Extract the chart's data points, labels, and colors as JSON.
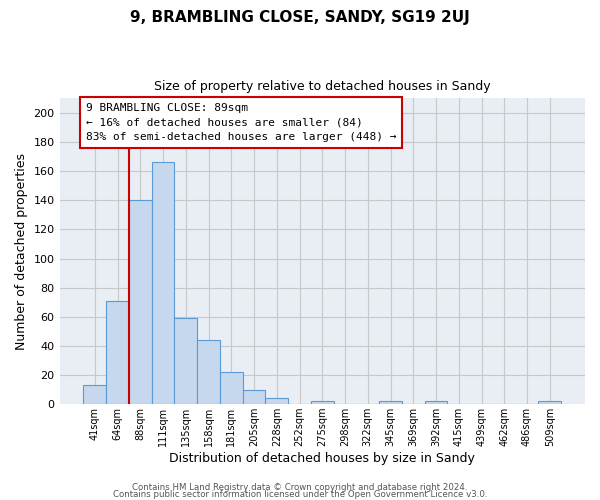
{
  "title": "9, BRAMBLING CLOSE, SANDY, SG19 2UJ",
  "subtitle": "Size of property relative to detached houses in Sandy",
  "xlabel": "Distribution of detached houses by size in Sandy",
  "ylabel": "Number of detached properties",
  "footer_line1": "Contains HM Land Registry data © Crown copyright and database right 2024.",
  "footer_line2": "Contains public sector information licensed under the Open Government Licence v3.0.",
  "bar_labels": [
    "41sqm",
    "64sqm",
    "88sqm",
    "111sqm",
    "135sqm",
    "158sqm",
    "181sqm",
    "205sqm",
    "228sqm",
    "252sqm",
    "275sqm",
    "298sqm",
    "322sqm",
    "345sqm",
    "369sqm",
    "392sqm",
    "415sqm",
    "439sqm",
    "462sqm",
    "486sqm",
    "509sqm"
  ],
  "bar_values": [
    13,
    71,
    140,
    166,
    59,
    44,
    22,
    10,
    4,
    0,
    2,
    0,
    0,
    2,
    0,
    2,
    0,
    0,
    0,
    0,
    2
  ],
  "bar_color": "#c5d8ed",
  "bar_edge_color": "#5b9bd5",
  "grid_color": "#c8c8c8",
  "plot_bg_color": "#e8eef4",
  "fig_bg_color": "#ffffff",
  "vline_color": "#cc0000",
  "annotation_title": "9 BRAMBLING CLOSE: 89sqm",
  "annotation_line1": "← 16% of detached houses are smaller (84)",
  "annotation_line2": "83% of semi-detached houses are larger (448) →",
  "annotation_box_color": "#ffffff",
  "annotation_box_edge": "#cc0000",
  "ylim": [
    0,
    210
  ],
  "yticks": [
    0,
    20,
    40,
    60,
    80,
    100,
    120,
    140,
    160,
    180,
    200
  ],
  "title_fontsize": 11,
  "subtitle_fontsize": 9
}
